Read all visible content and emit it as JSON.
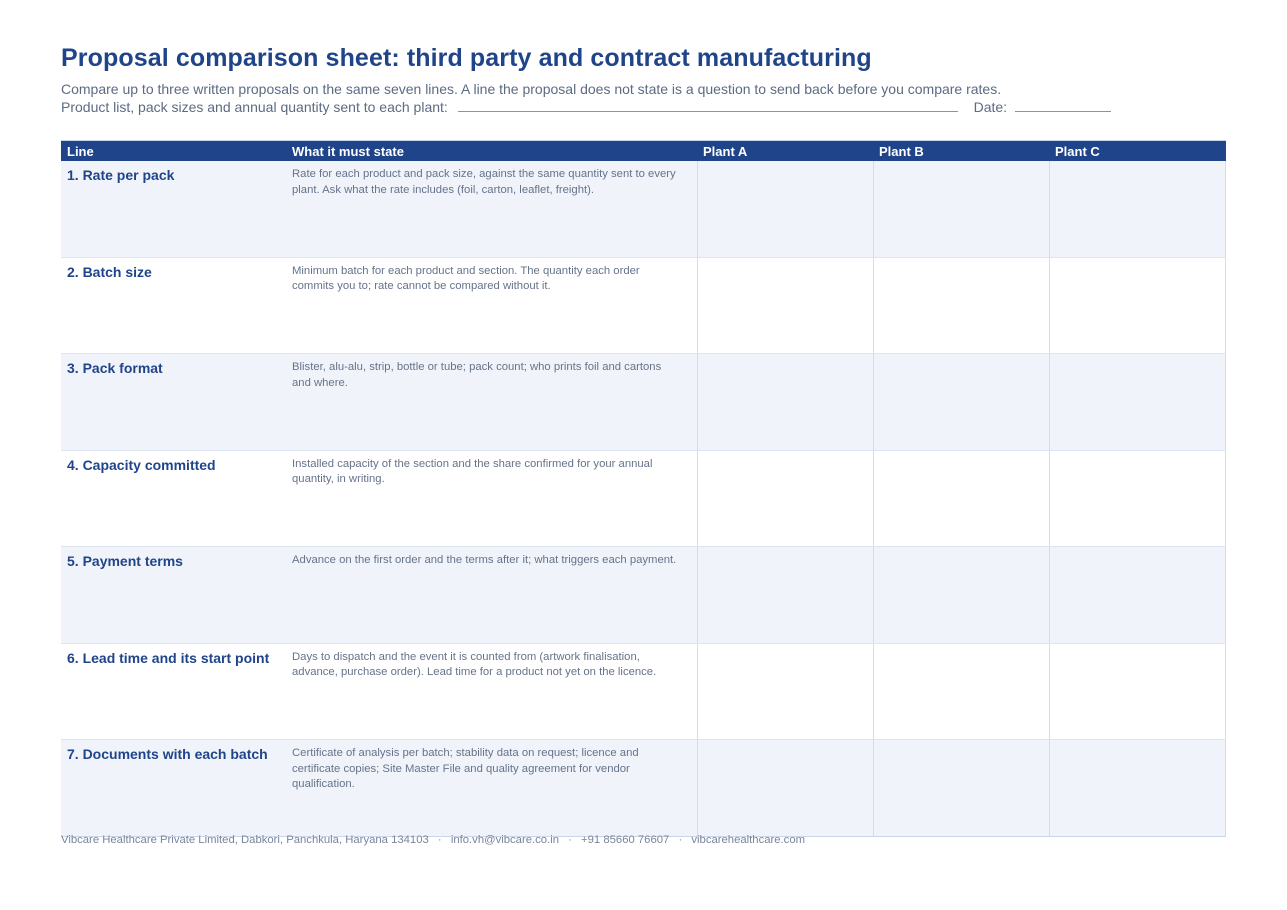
{
  "header": {
    "title": "Proposal comparison sheet: third party and contract manufacturing",
    "subtitle": "Compare up to three written proposals on the same seven lines. A line the proposal does not state is a question to send back before you compare rates.",
    "product_list_label": "Product list, pack sizes and annual quantity sent to each plant:",
    "date_label": "Date:"
  },
  "table": {
    "columns": [
      "Line",
      "What it must state",
      "Plant A",
      "Plant B",
      "Plant C"
    ],
    "rows": [
      {
        "line": "1. Rate per pack",
        "must_state": "Rate for each product and pack size, against the same quantity sent to every plant. Ask what the rate includes (foil, carton, leaflet, freight)."
      },
      {
        "line": "2. Batch size",
        "must_state": "Minimum batch for each product and section. The quantity each order commits you to; rate cannot be compared without it."
      },
      {
        "line": "3. Pack format",
        "must_state": "Blister, alu-alu, strip, bottle or tube; pack count; who prints foil and cartons and where."
      },
      {
        "line": "4. Capacity committed",
        "must_state": "Installed capacity of the section and the share confirmed for your annual quantity, in writing."
      },
      {
        "line": "5. Payment terms",
        "must_state": "Advance on the first order and the terms after it; what triggers each payment."
      },
      {
        "line": "6. Lead time and its start point",
        "must_state": "Days to dispatch and the event it is counted from (artwork finalisation, advance, purchase order). Lead time for a product not yet on the licence."
      },
      {
        "line": "7. Documents with each batch",
        "must_state": "Certificate of analysis per batch; stability data on request; licence and certificate copies; Site Master File and quality agreement for vendor qualification."
      }
    ]
  },
  "footer": {
    "company": "Vibcare Healthcare Private Limited, Dabkori, Panchkula, Haryana 134103",
    "email": "info.vh@vibcare.co.in",
    "phone": "+91 85660 76607",
    "website": "vibcarehealthcare.com",
    "separator": "·"
  },
  "colors": {
    "accent": "#1f4489",
    "row_alt": "#f0f4fa",
    "muted_text": "#66738a"
  }
}
